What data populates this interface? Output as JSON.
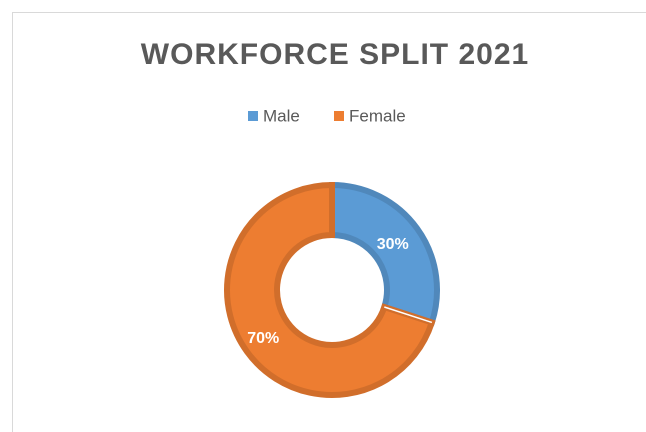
{
  "chart_data": {
    "type": "donut",
    "title": "WORKFORCE SPLIT 2021",
    "categories": [
      "Male",
      "Female"
    ],
    "values": [
      30,
      70
    ],
    "value_labels": [
      "30%",
      "70%"
    ],
    "colors": [
      "#5b9bd5",
      "#ed7d31"
    ],
    "legend": "top"
  }
}
